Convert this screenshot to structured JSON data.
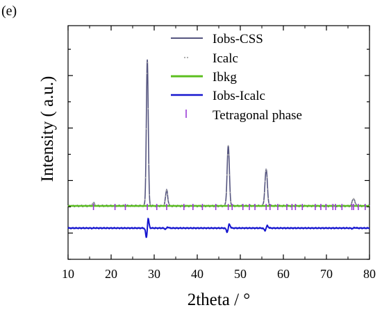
{
  "panel_label": "(e)",
  "chart_data": {
    "type": "line",
    "xlabel": "2theta / °",
    "ylabel": "Intensity ( a.u.)",
    "xlim": [
      10,
      80
    ],
    "x_ticks": [
      10,
      20,
      30,
      40,
      50,
      60,
      70,
      80
    ],
    "y_tick_labels_shown": false,
    "grid": false,
    "legend_position": "top-right",
    "peaks": [
      {
        "x": 15.9,
        "height": 0.02,
        "width": 0.25
      },
      {
        "x": 28.4,
        "height": 1.0,
        "width": 0.22
      },
      {
        "x": 32.9,
        "height": 0.11,
        "width": 0.25
      },
      {
        "x": 47.2,
        "height": 0.41,
        "width": 0.26
      },
      {
        "x": 56.0,
        "height": 0.25,
        "width": 0.28
      },
      {
        "x": 76.3,
        "height": 0.05,
        "width": 0.3
      }
    ],
    "series": [
      {
        "name": "Iobs-CSS",
        "style": "line",
        "color": "#55557f"
      },
      {
        "name": "Icalc",
        "style": "dots",
        "color": "#a6a6a6"
      },
      {
        "name": "Ibkg",
        "style": "line",
        "color": "#5cbf1f"
      },
      {
        "name": "Iobs-Icalc",
        "style": "line",
        "color": "#1515cf"
      },
      {
        "name": "Tetragonal phase",
        "style": "ticks",
        "color": "#9a3ad6"
      }
    ],
    "phase_ticks": [
      15.9,
      20.9,
      23.3,
      28.4,
      30.6,
      32.9,
      36.9,
      39.0,
      41.2,
      44.3,
      47.2,
      48.1,
      50.6,
      52.1,
      53.4,
      56.0,
      56.9,
      58.7,
      60.8,
      62.0,
      62.8,
      64.4,
      67.4,
      68.7,
      69.9,
      71.5,
      72.1,
      73.6,
      75.9,
      76.3,
      77.4,
      79.0
    ]
  }
}
